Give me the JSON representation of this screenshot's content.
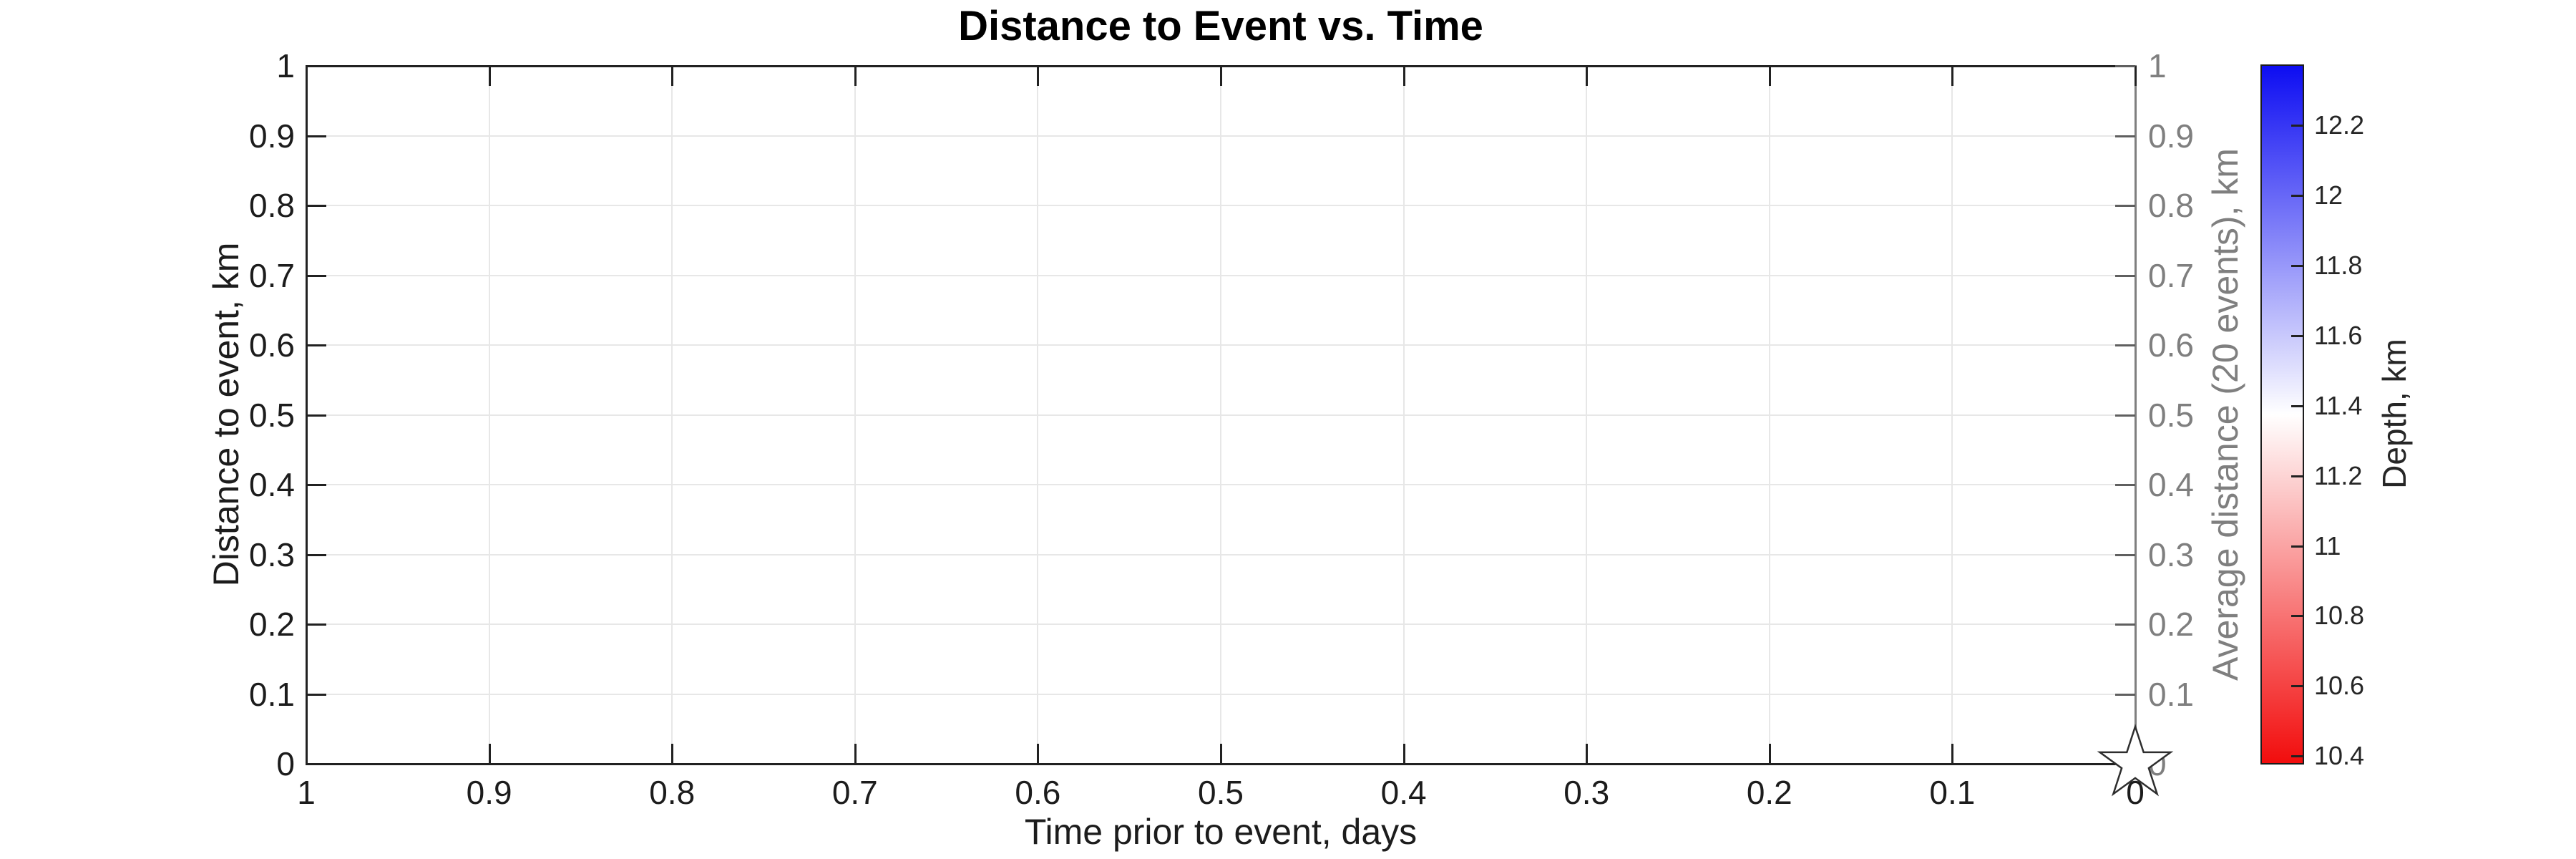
{
  "chart_data": {
    "type": "scatter",
    "title": "Distance to Event vs. Time",
    "xlabel": "Time prior to event, days",
    "x_direction": "reversed",
    "xlim": [
      1,
      0
    ],
    "x_tick_labels": [
      "1",
      "0.9",
      "0.8",
      "0.7",
      "0.6",
      "0.5",
      "0.4",
      "0.3",
      "0.2",
      "0.1",
      "0"
    ],
    "left_axis": {
      "label": "Distance to event, km",
      "ylim": [
        0,
        1
      ],
      "tick_labels": [
        "1",
        "0.9",
        "0.8",
        "0.7",
        "0.6",
        "0.5",
        "0.4",
        "0.3",
        "0.2",
        "0.1",
        "0"
      ],
      "color": "#1c1c1c"
    },
    "right_axis": {
      "label": "Average distance (20 events), km",
      "ylim": [
        0,
        1
      ],
      "tick_labels": [
        "1",
        "0.9",
        "0.8",
        "0.7",
        "0.6",
        "0.5",
        "0.4",
        "0.3",
        "0.2",
        "0.1",
        "0"
      ],
      "color": "#7f7f7f"
    },
    "grid": true,
    "series": [
      {
        "name": "event-origin-marker",
        "marker": "pentagram",
        "points": [
          {
            "x": 0,
            "y": 0
          }
        ],
        "fill": "#ffffff",
        "edge_color": "#2e2e2e"
      }
    ],
    "colorbar": {
      "label": "Depth, km",
      "tick_labels": [
        "12.2",
        "12",
        "11.8",
        "11.6",
        "11.4",
        "11.2",
        "11",
        "10.8",
        "10.6",
        "10.4"
      ],
      "vmin": 10.38,
      "vmax": 12.37,
      "colormap": [
        "#0d0df2",
        "#ffffff",
        "#f20d0d"
      ]
    },
    "colors": {
      "grid": "#e7e7e7",
      "axis_dark": "#212121",
      "axis_gray": "#7f7f7f",
      "background": "#ffffff"
    }
  }
}
